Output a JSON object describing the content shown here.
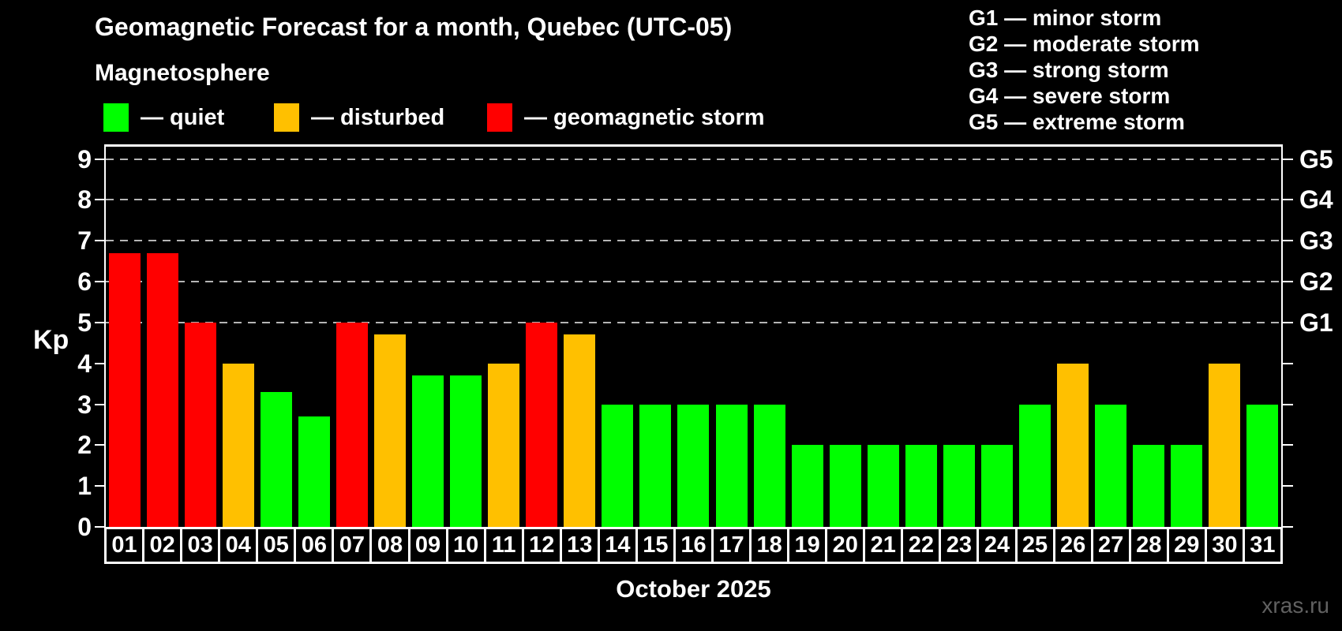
{
  "title": "Geomagnetic Forecast for a month, Quebec (UTC-05)",
  "subtitle": "Magnetosphere",
  "legend": {
    "items": [
      {
        "key": "quiet",
        "label": "— quiet",
        "color": "#00ff00"
      },
      {
        "key": "disturbed",
        "label": "— disturbed",
        "color": "#ffc000"
      },
      {
        "key": "storm",
        "label": "— geomagnetic storm",
        "color": "#ff0000"
      }
    ]
  },
  "g_legend": [
    "G1 — minor storm",
    "G2 — moderate storm",
    "G3 — strong storm",
    "G4 — severe storm",
    "G5 — extreme storm"
  ],
  "chart_data": {
    "type": "bar",
    "title": "Geomagnetic Forecast for a month, Quebec (UTC-05)",
    "xlabel": "October 2025",
    "ylabel": "Kp",
    "ylim": [
      0,
      9.36
    ],
    "yticks": [
      0,
      1,
      2,
      3,
      4,
      5,
      6,
      7,
      8,
      9
    ],
    "gridlines_at": [
      5,
      6,
      7,
      8,
      9
    ],
    "grid": "dashed horizontal lines at storm levels G1-G5 only",
    "legend_position": "top-left",
    "right_axis": [
      {
        "kp": 5,
        "label": "G1"
      },
      {
        "kp": 6,
        "label": "G2"
      },
      {
        "kp": 7,
        "label": "G3"
      },
      {
        "kp": 8,
        "label": "G4"
      },
      {
        "kp": 9,
        "label": "G5"
      }
    ],
    "categories": [
      "01",
      "02",
      "03",
      "04",
      "05",
      "06",
      "07",
      "08",
      "09",
      "10",
      "11",
      "12",
      "13",
      "14",
      "15",
      "16",
      "17",
      "18",
      "19",
      "20",
      "21",
      "22",
      "23",
      "24",
      "25",
      "26",
      "27",
      "28",
      "29",
      "30",
      "31"
    ],
    "values": [
      6.7,
      6.7,
      5,
      4,
      3.3,
      2.7,
      5,
      4.7,
      3.7,
      3.7,
      4,
      5,
      4.7,
      3,
      3,
      3,
      3,
      3,
      2,
      2,
      2,
      2,
      2,
      2,
      3,
      4,
      3,
      2,
      2,
      4,
      3
    ],
    "statuses": [
      "storm",
      "storm",
      "storm",
      "disturbed",
      "quiet",
      "quiet",
      "storm",
      "disturbed",
      "quiet",
      "quiet",
      "disturbed",
      "storm",
      "disturbed",
      "quiet",
      "quiet",
      "quiet",
      "quiet",
      "quiet",
      "quiet",
      "quiet",
      "quiet",
      "quiet",
      "quiet",
      "quiet",
      "quiet",
      "disturbed",
      "quiet",
      "quiet",
      "quiet",
      "disturbed",
      "quiet"
    ],
    "status_colors": {
      "quiet": "#00ff00",
      "disturbed": "#ffc000",
      "storm": "#ff0000"
    }
  },
  "footer": {
    "xlabel": "October 2025",
    "watermark": "xras.ru"
  }
}
